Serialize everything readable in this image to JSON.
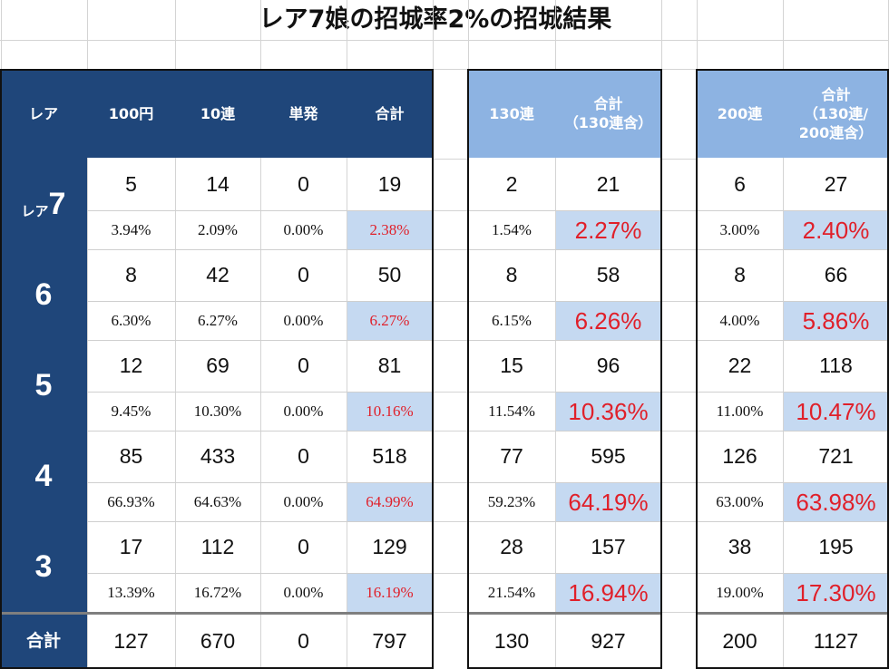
{
  "title": "レア7娘の招城率2%の招城結果",
  "headers": {
    "rarity": "レア",
    "c100": "100円",
    "c10": "10連",
    "single": "単発",
    "total": "合計",
    "c130": "130連",
    "total130_l1": "合計",
    "total130_l2": "（130連含）",
    "c200": "200連",
    "total200_l1": "合計",
    "total200_l2": "（130連/",
    "total200_l3": "200連含）"
  },
  "rows": [
    {
      "label_prefix": "レア",
      "label": "7",
      "counts": [
        "5",
        "14",
        "0",
        "19",
        "2",
        "21",
        "6",
        "27"
      ],
      "pcts": [
        "3.94%",
        "2.09%",
        "0.00%",
        "2.38%",
        "1.54%",
        "2.27%",
        "3.00%",
        "2.40%"
      ]
    },
    {
      "label_prefix": "",
      "label": "6",
      "counts": [
        "8",
        "42",
        "0",
        "50",
        "8",
        "58",
        "8",
        "66"
      ],
      "pcts": [
        "6.30%",
        "6.27%",
        "0.00%",
        "6.27%",
        "6.15%",
        "6.26%",
        "4.00%",
        "5.86%"
      ]
    },
    {
      "label_prefix": "",
      "label": "5",
      "counts": [
        "12",
        "69",
        "0",
        "81",
        "15",
        "96",
        "22",
        "118"
      ],
      "pcts": [
        "9.45%",
        "10.30%",
        "0.00%",
        "10.16%",
        "11.54%",
        "10.36%",
        "11.00%",
        "10.47%"
      ]
    },
    {
      "label_prefix": "",
      "label": "4",
      "counts": [
        "85",
        "433",
        "0",
        "518",
        "77",
        "595",
        "126",
        "721"
      ],
      "pcts": [
        "66.93%",
        "64.63%",
        "0.00%",
        "64.99%",
        "59.23%",
        "64.19%",
        "63.00%",
        "63.98%"
      ]
    },
    {
      "label_prefix": "",
      "label": "3",
      "counts": [
        "17",
        "112",
        "0",
        "129",
        "28",
        "157",
        "38",
        "195"
      ],
      "pcts": [
        "13.39%",
        "16.72%",
        "0.00%",
        "16.19%",
        "21.54%",
        "16.94%",
        "19.00%",
        "17.30%"
      ]
    }
  ],
  "totals": {
    "label": "合計",
    "values": [
      "127",
      "670",
      "0",
      "797",
      "130",
      "927",
      "200",
      "1127"
    ]
  },
  "colors": {
    "header_navy": "#1f467a",
    "header_light_blue": "#8db3e2",
    "highlight_fill": "#c5d9f1",
    "highlight_text": "#e0202a"
  }
}
